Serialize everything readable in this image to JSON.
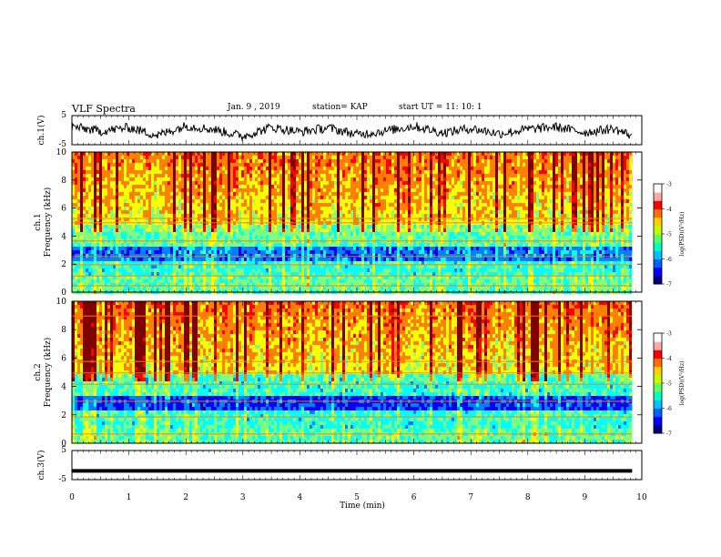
{
  "header": {
    "title": "VLF Spectra",
    "date": "Jan. 9 , 2019",
    "station": "station= KAP",
    "start": "start  UT =   11: 10: 1"
  },
  "colors": {
    "spectrogram_scale": [
      "#00007f",
      "#0000ff",
      "#007fff",
      "#00ffff",
      "#7fff7f",
      "#ffff00",
      "#ff7f00",
      "#ff0000",
      "#7f0000"
    ],
    "waveform": "#000000",
    "axes": "#000000"
  },
  "chart_data": [
    {
      "type": "line",
      "panel": "ch1-waveform",
      "ylabel": "ch.1(V)",
      "ylim": [
        -5,
        5
      ],
      "yticks": [
        "5",
        "-5"
      ],
      "x": [
        0,
        0.5,
        1,
        1.5,
        2,
        2.5,
        3,
        3.5,
        4,
        4.5,
        5,
        5.5,
        6,
        6.5,
        7,
        7.5,
        8,
        8.5,
        9,
        9.5,
        9.83
      ],
      "values": [
        1.2,
        -0.4,
        0.9,
        -1.8,
        1.5,
        0.2,
        -2.1,
        1.0,
        -0.6,
        0.8,
        -1.5,
        -0.3,
        1.4,
        -0.9,
        0.6,
        -1.2,
        0.3,
        1.1,
        -0.8,
        0.5,
        -1.9
      ],
      "xlim": [
        0,
        10
      ]
    },
    {
      "type": "heatmap",
      "panel": "ch1-spectrogram",
      "ylabel": "ch.1 Frequency (kHz)",
      "ylim": [
        0,
        10
      ],
      "yticks": [
        "0",
        "2",
        "4",
        "6",
        "8",
        "10"
      ],
      "xlim": [
        0,
        10
      ],
      "colorbar": {
        "label": "log(PSD)(V²/Hz)",
        "range": [
          -7,
          -3
        ],
        "ticks": [
          "-3",
          "-4",
          "-5",
          "-6",
          "-7"
        ]
      }
    },
    {
      "type": "heatmap",
      "panel": "ch2-spectrogram",
      "ylabel": "ch.2 Frequency (kHz)",
      "ylim": [
        0,
        10
      ],
      "yticks": [
        "0",
        "2",
        "4",
        "6",
        "8",
        "10"
      ],
      "xlim": [
        0,
        10
      ],
      "colorbar": {
        "label": "log(PSD)(V²/Hz)",
        "range": [
          -7,
          -3
        ],
        "ticks": [
          "-3",
          "-4",
          "-5",
          "-6",
          "-7"
        ]
      }
    },
    {
      "type": "line",
      "panel": "ch3-waveform",
      "ylabel": "ch.3(V)",
      "ylim": [
        -5,
        5
      ],
      "yticks": [
        "5",
        "-5"
      ],
      "x": [
        0,
        9.83
      ],
      "values": [
        -2,
        -2
      ],
      "xlim": [
        0,
        10
      ]
    }
  ],
  "xaxis": {
    "label": "Time  (min)",
    "ticks": [
      "0",
      "1",
      "2",
      "3",
      "4",
      "5",
      "6",
      "7",
      "8",
      "9",
      "10"
    ]
  }
}
